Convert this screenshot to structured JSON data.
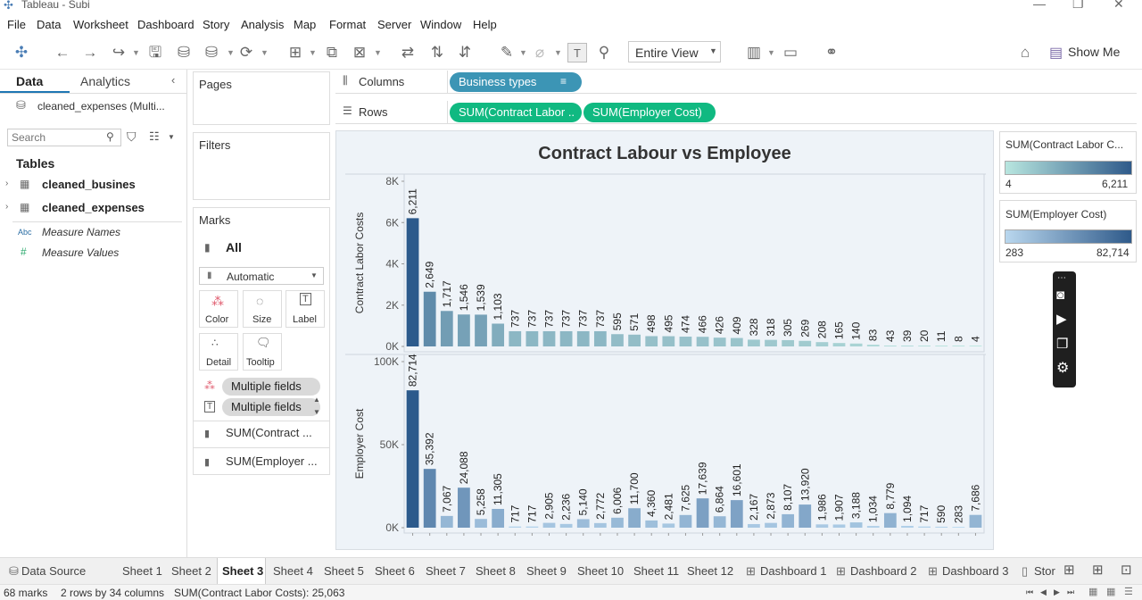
{
  "window": {
    "title": "Tableau - Subi"
  },
  "menu": [
    "File",
    "Data",
    "Worksheet",
    "Dashboard",
    "Story",
    "Analysis",
    "Map",
    "Format",
    "Server",
    "Window",
    "Help"
  ],
  "toolbar": {
    "view_select": "Entire View",
    "show_me": "Show Me"
  },
  "data_pane": {
    "tabs": [
      "Data",
      "Analytics"
    ],
    "datasource": "cleaned_expenses (Multi...",
    "search_placeholder": "Search",
    "tables_heading": "Tables",
    "tables": [
      "cleaned_busines",
      "cleaned_expenses"
    ],
    "measure_names": "Measure Names",
    "measure_values": "Measure Values",
    "abc_icon": "Abc",
    "hash_icon": "#"
  },
  "cards": {
    "pages": "Pages",
    "filters": "Filters",
    "marks": "Marks",
    "marks_all": "All",
    "mark_type": "Automatic",
    "buttons": [
      "Color",
      "Size",
      "Label",
      "Detail",
      "Tooltip"
    ],
    "multiple_fields": "Multiple fields",
    "sum_contract": "SUM(Contract ...",
    "sum_employer": "SUM(Employer ..."
  },
  "shelves": {
    "columns_label": "Columns",
    "rows_label": "Rows",
    "columns_pill": "Business types",
    "rows_pills": [
      "SUM(Contract Labor ..",
      "SUM(Employer Cost)"
    ]
  },
  "legends": [
    {
      "title": "SUM(Contract Labor C...",
      "min": "4",
      "max": "6,211",
      "color_low": "#b8e6df",
      "color_high": "#2f5a8a"
    },
    {
      "title": "SUM(Employer Cost)",
      "min": "283",
      "max": "82,714",
      "color_low": "#b9d7ee",
      "color_high": "#2f5a8a"
    }
  ],
  "chart_data": {
    "type": "bar",
    "title": "Contract Labour vs Employee",
    "series": [
      {
        "name": "Contract Labor Costs",
        "ylabel": "Contract Labor Costs",
        "ylim": [
          0,
          8000
        ],
        "ticks": [
          {
            "v": 0,
            "l": "0K"
          },
          {
            "v": 2000,
            "l": "2K"
          },
          {
            "v": 4000,
            "l": "4K"
          },
          {
            "v": 6000,
            "l": "6K"
          },
          {
            "v": 8000,
            "l": "8K"
          }
        ],
        "values": [
          6211,
          2649,
          1717,
          1546,
          1539,
          1103,
          737,
          737,
          737,
          737,
          737,
          737,
          595,
          571,
          498,
          495,
          474,
          466,
          426,
          409,
          328,
          318,
          305,
          269,
          208,
          165,
          140,
          83,
          43,
          39,
          20,
          11,
          8,
          4
        ],
        "labels": [
          "6,211",
          "2,649",
          "1,717",
          "1,546",
          "1,539",
          "1,103",
          "737",
          "737",
          "737",
          "737",
          "737",
          "737",
          "595",
          "571",
          "498",
          "495",
          "474",
          "466",
          "426",
          "409",
          "328",
          "318",
          "305",
          "269",
          "208",
          "165",
          "140",
          "83",
          "43",
          "39",
          "20",
          "11",
          "8",
          "4"
        ]
      },
      {
        "name": "Employer Cost",
        "ylabel": "Employer Cost",
        "ylim": [
          0,
          100000
        ],
        "ticks": [
          {
            "v": 0,
            "l": "0K"
          },
          {
            "v": 50000,
            "l": "50K"
          },
          {
            "v": 100000,
            "l": "100K"
          }
        ],
        "values": [
          82714,
          35392,
          7067,
          24088,
          5258,
          11305,
          717,
          717,
          2905,
          2236,
          5140,
          2772,
          6006,
          11700,
          4360,
          2481,
          7625,
          17639,
          6864,
          16601,
          2167,
          2873,
          8107,
          13920,
          1986,
          1907,
          3188,
          1034,
          8779,
          1094,
          717,
          590,
          283,
          7686
        ],
        "labels": [
          "82,714",
          "35,392",
          "7,067",
          "24,088",
          "5,258",
          "11,305",
          "717",
          "717",
          "2,905",
          "2,236",
          "5,140",
          "2,772",
          "6,006",
          "11,700",
          "4,360",
          "2,481",
          "7,625",
          "17,639",
          "6,864",
          "16,601",
          "2,167",
          "2,873",
          "8,107",
          "13,920",
          "1,986",
          "1,907",
          "3,188",
          "1,034",
          "8,779",
          "1,094",
          "717",
          "590",
          "283",
          "7,686"
        ]
      }
    ]
  },
  "sheet_tabs": [
    "Data Source",
    "Sheet 1",
    "Sheet 2",
    "Sheet 3",
    "Sheet 4",
    "Sheet 5",
    "Sheet 6",
    "Sheet 7",
    "Sheet 8",
    "Sheet 9",
    "Sheet 10",
    "Sheet 11",
    "Sheet 12",
    "Dashboard 1",
    "Dashboard 2",
    "Dashboard 3",
    "Stor"
  ],
  "active_tab": "Sheet 3",
  "status": {
    "marks": "68 marks",
    "dims": "2 rows by 34 columns",
    "sum": "SUM(Contract Labor Costs): 25,063"
  }
}
